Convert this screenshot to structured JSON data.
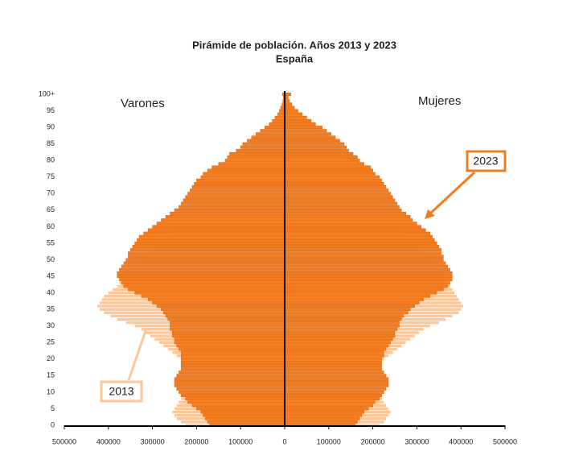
{
  "chart_data": {
    "type": "pyramid",
    "title": "Pirámide de población. Años 2013 y 2023",
    "subtitle": "España",
    "left_label": "Varones",
    "right_label": "Mujeres",
    "categories": [
      "0",
      null,
      null,
      null,
      null,
      "5",
      null,
      null,
      null,
      null,
      "10",
      null,
      null,
      null,
      null,
      "15",
      null,
      null,
      null,
      null,
      "20",
      null,
      null,
      null,
      null,
      "25",
      null,
      null,
      null,
      null,
      "30",
      null,
      null,
      null,
      null,
      "35",
      null,
      null,
      null,
      null,
      "40",
      null,
      null,
      null,
      null,
      "45",
      null,
      null,
      null,
      null,
      "50",
      null,
      null,
      null,
      null,
      "55",
      null,
      null,
      null,
      null,
      "60",
      null,
      null,
      null,
      null,
      "65",
      null,
      null,
      null,
      null,
      "70",
      null,
      null,
      null,
      null,
      "75",
      null,
      null,
      null,
      null,
      "80",
      null,
      null,
      null,
      null,
      "85",
      null,
      null,
      null,
      null,
      "90",
      null,
      null,
      null,
      null,
      "95",
      null,
      null,
      null,
      null,
      "100+"
    ],
    "series": [
      {
        "name": "2013",
        "color": "#fdc79a",
        "male": [
          225000,
          235000,
          245000,
          250000,
          255000,
          250000,
          245000,
          240000,
          235000,
          230000,
          225000,
          220000,
          215000,
          215000,
          220000,
          225000,
          225000,
          225000,
          225000,
          230000,
          235000,
          245000,
          255000,
          265000,
          275000,
          285000,
          295000,
          305000,
          315000,
          325000,
          340000,
          360000,
          380000,
          395000,
          410000,
          420000,
          425000,
          420000,
          415000,
          410000,
          400000,
          390000,
          380000,
          375000,
          370000,
          365000,
          360000,
          350000,
          345000,
          335000,
          325000,
          315000,
          305000,
          295000,
          285000,
          275000,
          265000,
          255000,
          250000,
          245000,
          240000,
          235000,
          230000,
          225000,
          220000,
          215000,
          210000,
          200000,
          185000,
          175000,
          170000,
          165000,
          160000,
          140000,
          135000,
          150000,
          145000,
          135000,
          125000,
          115000,
          105000,
          95000,
          85000,
          75000,
          65000,
          55000,
          45000,
          38000,
          30000,
          24000,
          18000,
          13000,
          10000,
          7000,
          5000,
          3000,
          2000,
          1500,
          1000,
          700,
          1000
        ],
        "female": [
          215000,
          225000,
          230000,
          235000,
          240000,
          235000,
          230000,
          225000,
          220000,
          215000,
          210000,
          205000,
          205000,
          205000,
          210000,
          215000,
          215000,
          215000,
          215000,
          220000,
          225000,
          235000,
          245000,
          255000,
          265000,
          275000,
          285000,
          295000,
          305000,
          315000,
          330000,
          350000,
          365000,
          380000,
          395000,
          400000,
          405000,
          400000,
          395000,
          390000,
          385000,
          380000,
          375000,
          370000,
          365000,
          360000,
          355000,
          350000,
          345000,
          335000,
          325000,
          315000,
          305000,
          300000,
          295000,
          285000,
          275000,
          270000,
          265000,
          260000,
          255000,
          250000,
          245000,
          240000,
          235000,
          230000,
          225000,
          220000,
          210000,
          200000,
          195000,
          190000,
          185000,
          165000,
          160000,
          175000,
          170000,
          165000,
          160000,
          150000,
          140000,
          130000,
          120000,
          110000,
          100000,
          90000,
          80000,
          70000,
          60000,
          50000,
          40000,
          32000,
          25000,
          19000,
          14000,
          10000,
          7000,
          5000,
          3000,
          2000,
          3000
        ]
      },
      {
        "name": "2023",
        "color": "#f47c20",
        "male": [
          170000,
          175000,
          180000,
          185000,
          190000,
          200000,
          210000,
          220000,
          225000,
          235000,
          240000,
          245000,
          250000,
          250000,
          250000,
          245000,
          240000,
          235000,
          235000,
          235000,
          235000,
          235000,
          235000,
          240000,
          245000,
          250000,
          250000,
          255000,
          255000,
          260000,
          260000,
          260000,
          265000,
          270000,
          275000,
          280000,
          290000,
          300000,
          310000,
          325000,
          340000,
          355000,
          365000,
          370000,
          375000,
          380000,
          380000,
          375000,
          370000,
          365000,
          360000,
          355000,
          355000,
          350000,
          345000,
          340000,
          335000,
          330000,
          320000,
          310000,
          300000,
          290000,
          280000,
          270000,
          260000,
          250000,
          240000,
          235000,
          230000,
          225000,
          220000,
          215000,
          210000,
          205000,
          200000,
          190000,
          185000,
          175000,
          165000,
          150000,
          135000,
          130000,
          125000,
          110000,
          100000,
          95000,
          85000,
          75000,
          65000,
          55000,
          45000,
          35000,
          28000,
          22000,
          16000,
          12000,
          9000,
          6000,
          4000,
          3000,
          5000
        ],
        "female": [
          160000,
          165000,
          170000,
          175000,
          180000,
          190000,
          200000,
          205000,
          215000,
          220000,
          225000,
          230000,
          235000,
          235000,
          235000,
          230000,
          225000,
          220000,
          220000,
          220000,
          220000,
          225000,
          225000,
          230000,
          235000,
          240000,
          245000,
          250000,
          250000,
          255000,
          260000,
          260000,
          265000,
          270000,
          280000,
          285000,
          295000,
          305000,
          315000,
          330000,
          345000,
          360000,
          370000,
          375000,
          380000,
          380000,
          380000,
          375000,
          370000,
          365000,
          360000,
          360000,
          355000,
          355000,
          350000,
          345000,
          340000,
          335000,
          330000,
          320000,
          310000,
          300000,
          290000,
          285000,
          275000,
          265000,
          260000,
          255000,
          250000,
          245000,
          240000,
          235000,
          230000,
          225000,
          220000,
          215000,
          205000,
          200000,
          195000,
          180000,
          170000,
          165000,
          155000,
          145000,
          140000,
          135000,
          125000,
          115000,
          105000,
          95000,
          85000,
          70000,
          60000,
          50000,
          40000,
          30000,
          22000,
          16000,
          11000,
          8000,
          14000
        ]
      }
    ],
    "xlim": [
      -500000,
      500000
    ],
    "xticks": [
      {
        "value": -500000,
        "label": "500000"
      },
      {
        "value": -400000,
        "label": "400000"
      },
      {
        "value": -300000,
        "label": "300000"
      },
      {
        "value": -200000,
        "label": "200000"
      },
      {
        "value": -100000,
        "label": "100000"
      },
      0,
      100000,
      200000,
      300000,
      400000,
      500000
    ]
  }
}
